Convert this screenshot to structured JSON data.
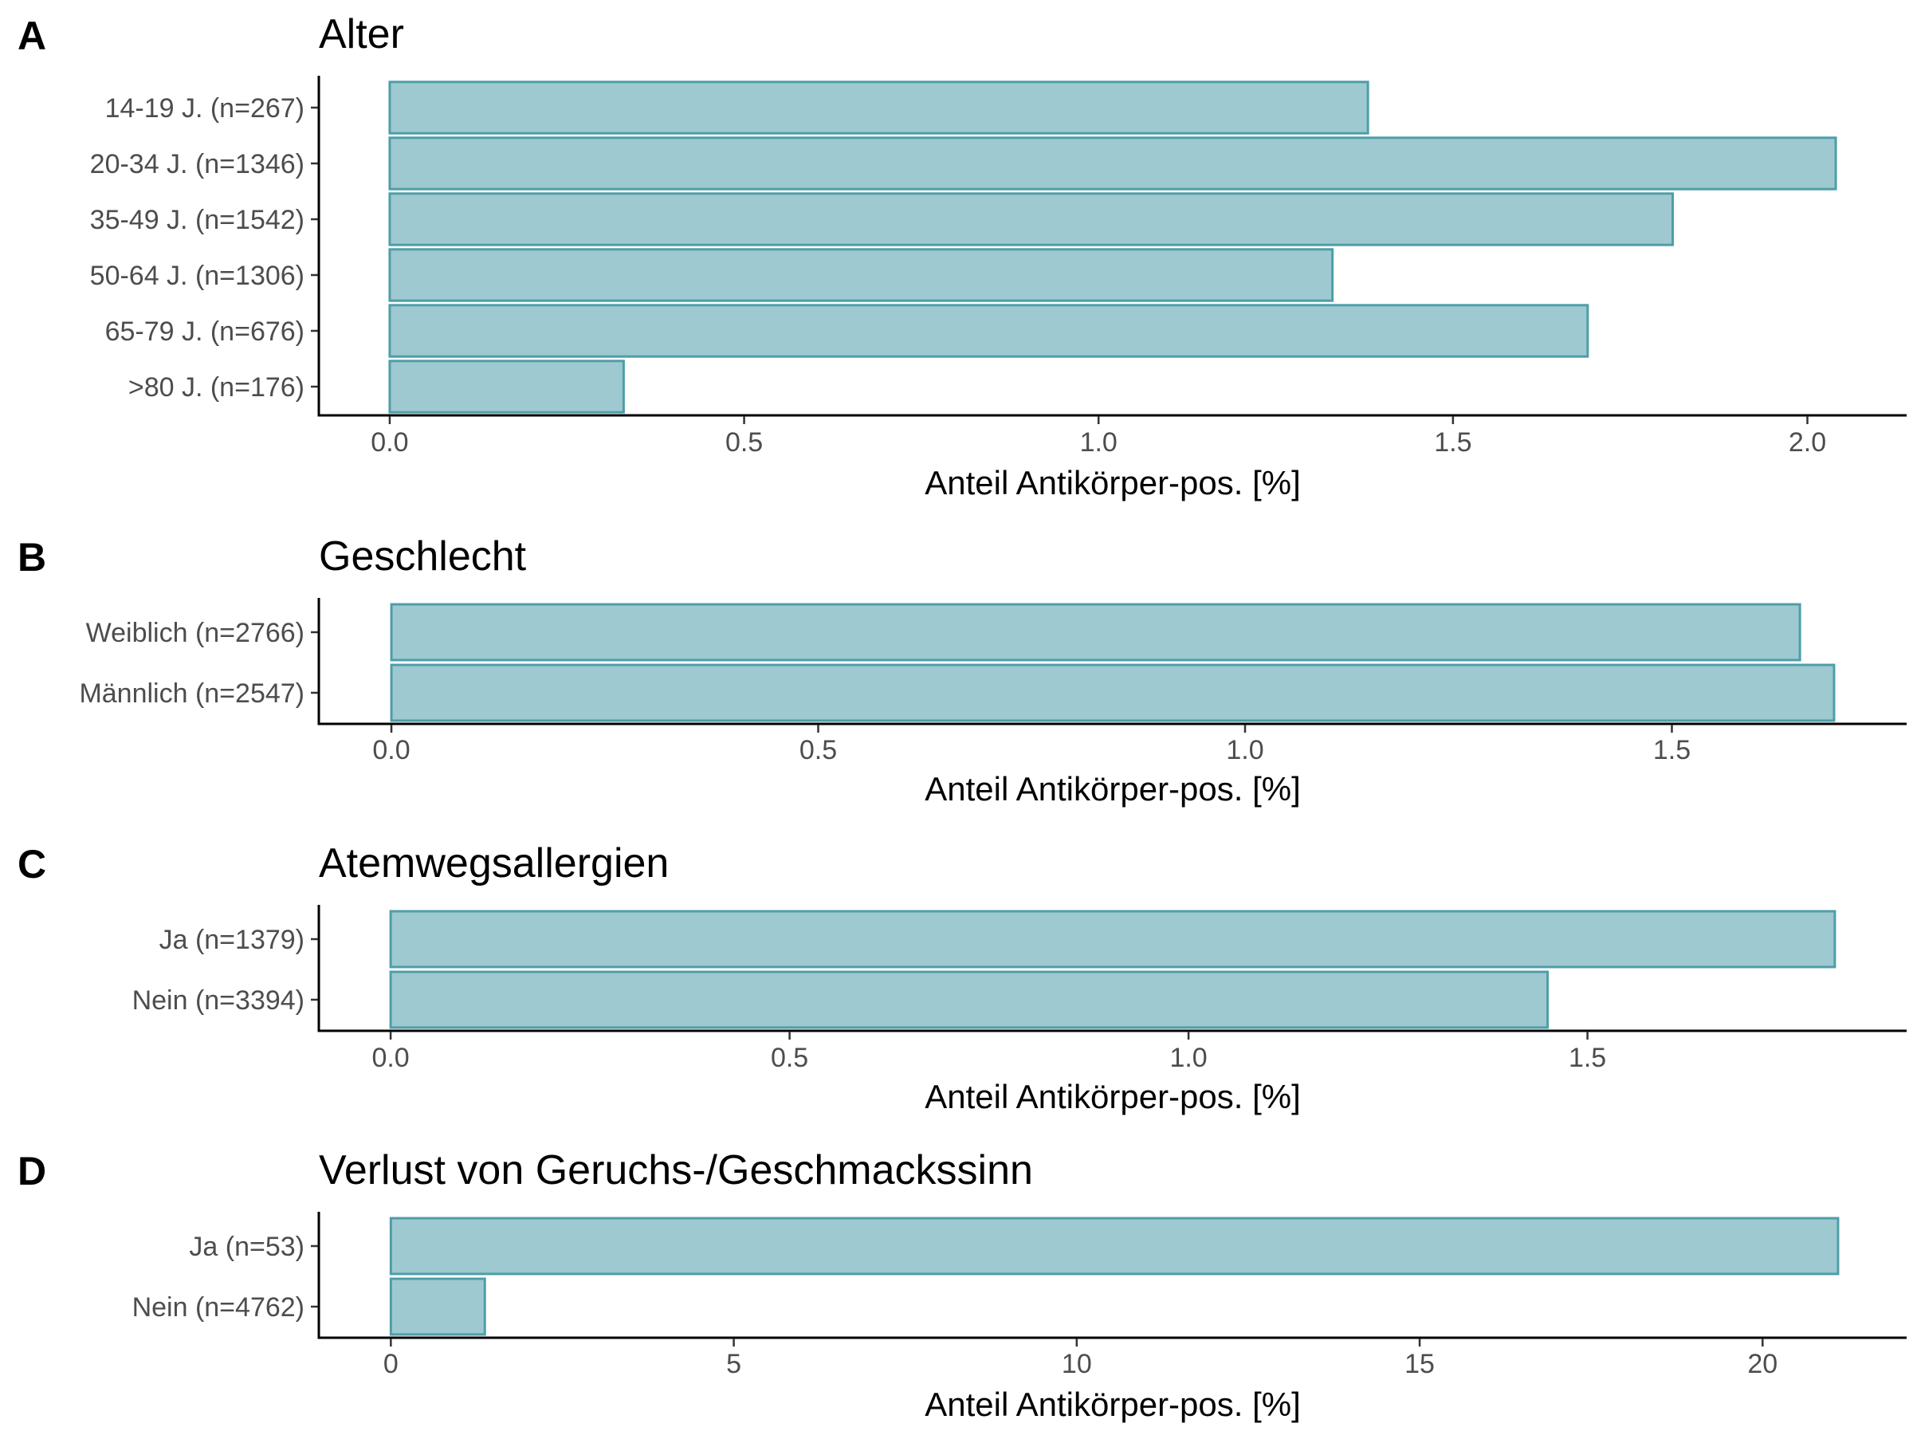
{
  "colors": {
    "bar_fill": "#9ec9d1",
    "bar_stroke": "#4e9ea8",
    "axis": "#000000",
    "tick_text": "#4d4d4d"
  },
  "chart_data": [
    {
      "type": "bar",
      "orientation": "horizontal",
      "panel": "A",
      "title": "Alter",
      "xlabel": "Anteil Antikörper-pos. [%]",
      "ylabel": "",
      "categories": [
        "14-19 J. (n=267)",
        "20-34 J. (n=1346)",
        "35-49 J. (n=1542)",
        "50-64 J. (n=1306)",
        "65-79 J. (n=676)",
        ">80 J. (n=176)"
      ],
      "values": [
        1.38,
        2.04,
        1.81,
        1.33,
        1.69,
        0.33
      ],
      "xlim": [
        -0.1,
        2.14
      ],
      "xticks": [
        0.0,
        0.5,
        1.0,
        1.5,
        2.0
      ],
      "xtick_labels": [
        "0.0",
        "0.5",
        "1.0",
        "1.5",
        "2.0"
      ],
      "grid": false,
      "legend": "none"
    },
    {
      "type": "bar",
      "orientation": "horizontal",
      "panel": "B",
      "title": "Geschlecht",
      "xlabel": "Anteil Antikörper-pos. [%]",
      "ylabel": "",
      "categories": [
        "Weiblich (n=2766)",
        "Männlich (n=2547)"
      ],
      "values": [
        1.65,
        1.69
      ],
      "xlim": [
        -0.085,
        1.775
      ],
      "xticks": [
        0.0,
        0.5,
        1.0,
        1.5
      ],
      "xtick_labels": [
        "0.0",
        "0.5",
        "1.0",
        "1.5"
      ],
      "grid": false,
      "legend": "none"
    },
    {
      "type": "bar",
      "orientation": "horizontal",
      "panel": "C",
      "title": "Atemwegsallergien",
      "xlabel": "Anteil Antikörper-pos. [%]",
      "ylabel": "",
      "categories": [
        "Ja (n=1379)",
        "Nein (n=3394)"
      ],
      "values": [
        1.81,
        1.45
      ],
      "xlim": [
        -0.09,
        1.9
      ],
      "xticks": [
        0.0,
        0.5,
        1.0,
        1.5
      ],
      "xtick_labels": [
        "0.0",
        "0.5",
        "1.0",
        "1.5"
      ],
      "grid": false,
      "legend": "none"
    },
    {
      "type": "bar",
      "orientation": "horizontal",
      "panel": "D",
      "title": "Verlust von Geruchs-/Geschmackssinn",
      "xlabel": "Anteil Antikörper-pos. [%]",
      "ylabel": "",
      "categories": [
        "Ja (n=53)",
        "Nein (n=4762)"
      ],
      "values": [
        21.1,
        1.37
      ],
      "xlim": [
        -1.05,
        22.1
      ],
      "xticks": [
        0,
        5,
        10,
        15,
        20
      ],
      "xtick_labels": [
        "0",
        "5",
        "10",
        "15",
        "20"
      ],
      "grid": false,
      "legend": "none"
    }
  ]
}
